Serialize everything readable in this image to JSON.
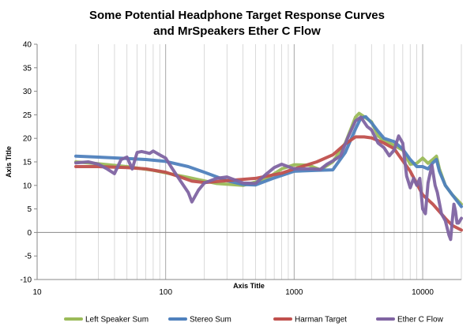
{
  "chart_data": {
    "type": "line",
    "title": "Some Potential Headphone Target Response Curves",
    "subtitle": "and MrSpeakers Ether C Flow",
    "xlabel": "Axis Title",
    "ylabel": "Axis Title",
    "xscale": "log",
    "xlim": [
      10,
      20000
    ],
    "ylim": [
      -10,
      40
    ],
    "yticks": [
      "-10",
      "-5",
      "0",
      "5",
      "10",
      "15",
      "20",
      "25",
      "30",
      "35",
      "40"
    ],
    "xticks": [
      "10",
      "100",
      "1000",
      "10000"
    ],
    "grid": {
      "x_major": true,
      "x_minor": true,
      "y_major": false
    },
    "legend_position": "bottom",
    "series": [
      {
        "name": "Left Speaker Sum",
        "color": "#9bbb59",
        "points": [
          [
            20,
            15
          ],
          [
            30,
            14.6
          ],
          [
            50,
            14
          ],
          [
            80,
            13.2
          ],
          [
            150,
            11.7
          ],
          [
            250,
            10.4
          ],
          [
            400,
            10
          ],
          [
            600,
            11.3
          ],
          [
            800,
            13.5
          ],
          [
            1000,
            14.4
          ],
          [
            1300,
            14.3
          ],
          [
            1600,
            13.3
          ],
          [
            2000,
            15
          ],
          [
            2500,
            19
          ],
          [
            3000,
            24.5
          ],
          [
            3200,
            25.3
          ],
          [
            3500,
            24.6
          ],
          [
            4000,
            23.5
          ],
          [
            4500,
            20.5
          ],
          [
            5000,
            19.5
          ],
          [
            6000,
            18.5
          ],
          [
            7000,
            17.5
          ],
          [
            8000,
            14.5
          ],
          [
            9000,
            14.7
          ],
          [
            10000,
            15.8
          ],
          [
            11000,
            14.7
          ],
          [
            12000,
            15.5
          ],
          [
            12800,
            16.2
          ],
          [
            13500,
            13.5
          ],
          [
            15000,
            10
          ],
          [
            17000,
            8
          ],
          [
            20000,
            6
          ]
        ]
      },
      {
        "name": "Stereo Sum",
        "color": "#4f81bd",
        "points": [
          [
            20,
            16.2
          ],
          [
            30,
            16
          ],
          [
            50,
            15.7
          ],
          [
            70,
            15.5
          ],
          [
            100,
            15.1
          ],
          [
            150,
            14
          ],
          [
            200,
            12.8
          ],
          [
            300,
            11
          ],
          [
            400,
            10.2
          ],
          [
            500,
            10.1
          ],
          [
            700,
            11.6
          ],
          [
            1000,
            13
          ],
          [
            1500,
            13.2
          ],
          [
            2000,
            13.3
          ],
          [
            2500,
            17
          ],
          [
            3000,
            22
          ],
          [
            3300,
            24.3
          ],
          [
            3600,
            24.6
          ],
          [
            4000,
            23.3
          ],
          [
            4500,
            21.5
          ],
          [
            5000,
            20
          ],
          [
            6000,
            19.3
          ],
          [
            7000,
            17.7
          ],
          [
            8000,
            15.5
          ],
          [
            9000,
            14
          ],
          [
            10000,
            14
          ],
          [
            11000,
            13.5
          ],
          [
            12000,
            14.8
          ],
          [
            12800,
            15.5
          ],
          [
            13500,
            13
          ],
          [
            15000,
            10
          ],
          [
            17000,
            8
          ],
          [
            20000,
            5.5
          ]
        ]
      },
      {
        "name": "Harman Target",
        "color": "#c0504d",
        "points": [
          [
            20,
            14
          ],
          [
            30,
            14
          ],
          [
            50,
            13.8
          ],
          [
            70,
            13.5
          ],
          [
            100,
            12.8
          ],
          [
            130,
            11.8
          ],
          [
            160,
            10.9
          ],
          [
            200,
            10.6
          ],
          [
            300,
            11
          ],
          [
            500,
            11.5
          ],
          [
            800,
            12.6
          ],
          [
            1000,
            13.5
          ],
          [
            1500,
            15
          ],
          [
            2000,
            16.5
          ],
          [
            2500,
            18.8
          ],
          [
            3000,
            20.3
          ],
          [
            3500,
            20.3
          ],
          [
            4000,
            20.1
          ],
          [
            5000,
            19
          ],
          [
            6000,
            17.8
          ],
          [
            8000,
            13
          ],
          [
            10000,
            8
          ],
          [
            12000,
            6
          ],
          [
            15000,
            3
          ],
          [
            17000,
            1.5
          ],
          [
            20000,
            0.5
          ]
        ]
      },
      {
        "name": "Ether C Flow",
        "color": "#8064a2",
        "points": [
          [
            20,
            14.8
          ],
          [
            25,
            15
          ],
          [
            30,
            14.5
          ],
          [
            35,
            13.5
          ],
          [
            40,
            12.5
          ],
          [
            45,
            15.5
          ],
          [
            50,
            16
          ],
          [
            55,
            13.5
          ],
          [
            60,
            17
          ],
          [
            65,
            17.2
          ],
          [
            70,
            17
          ],
          [
            75,
            16.8
          ],
          [
            80,
            17.3
          ],
          [
            90,
            16.5
          ],
          [
            100,
            15.8
          ],
          [
            110,
            14
          ],
          [
            130,
            11
          ],
          [
            150,
            8.5
          ],
          [
            160,
            6.5
          ],
          [
            180,
            9
          ],
          [
            200,
            10.5
          ],
          [
            250,
            11.5
          ],
          [
            300,
            11.8
          ],
          [
            400,
            10.5
          ],
          [
            500,
            10.4
          ],
          [
            600,
            12.3
          ],
          [
            700,
            13.8
          ],
          [
            800,
            14.5
          ],
          [
            1000,
            13.5
          ],
          [
            1200,
            13.5
          ],
          [
            1400,
            13.5
          ],
          [
            1600,
            13.4
          ],
          [
            1800,
            14.5
          ],
          [
            2000,
            15.2
          ],
          [
            2300,
            16.3
          ],
          [
            2600,
            20
          ],
          [
            3000,
            23.7
          ],
          [
            3300,
            24.5
          ],
          [
            3700,
            22.5
          ],
          [
            4000,
            21.8
          ],
          [
            4500,
            19
          ],
          [
            5000,
            18
          ],
          [
            5500,
            16.3
          ],
          [
            6000,
            17.5
          ],
          [
            6500,
            20.5
          ],
          [
            7000,
            19
          ],
          [
            7500,
            12
          ],
          [
            8000,
            9.5
          ],
          [
            8500,
            11.5
          ],
          [
            9000,
            10
          ],
          [
            9500,
            11.5
          ],
          [
            10000,
            5
          ],
          [
            10500,
            4
          ],
          [
            11000,
            10.5
          ],
          [
            11800,
            14.3
          ],
          [
            12500,
            10
          ],
          [
            13000,
            8.5
          ],
          [
            14000,
            4
          ],
          [
            15000,
            2.5
          ],
          [
            16000,
            -0.5
          ],
          [
            16500,
            -1.5
          ],
          [
            17000,
            2.5
          ],
          [
            17500,
            6
          ],
          [
            18000,
            4.5
          ],
          [
            18500,
            2
          ],
          [
            19000,
            2
          ],
          [
            20000,
            3
          ]
        ]
      }
    ]
  }
}
